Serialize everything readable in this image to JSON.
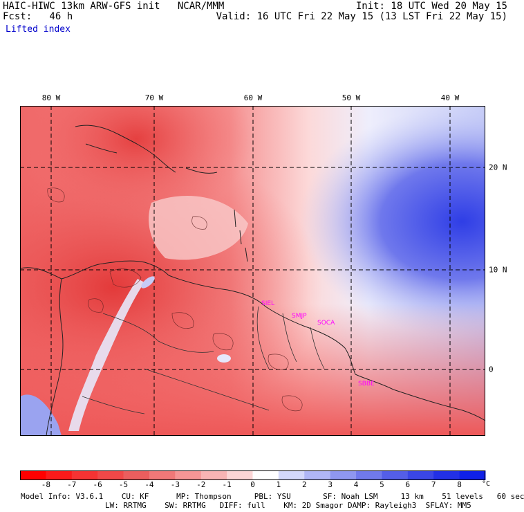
{
  "header": {
    "line1_left": "HAIC-HIWC 13km ARW-GFS init   NCAR/MMM",
    "line1_right": "Init: 18 UTC Wed 20 May 15",
    "line2_left": "Fcst:   46 h",
    "line2_right": "Valid: 16 UTC Fri 22 May 15 (13 LST Fri 22 May 15)",
    "field_name": "Lifted index"
  },
  "map": {
    "longitude_labels": [
      "80 W",
      "70 W",
      "60 W",
      "50 W",
      "40 W"
    ],
    "latitude_labels": [
      "20 N",
      "10 N",
      "0"
    ],
    "stations": [
      "SIEL",
      "SMJP",
      "SOCA",
      "SBBE"
    ],
    "colors": {
      "strong_negative": "#e8333a",
      "negative": "#f48585",
      "neutral": "#fde6e6",
      "positive": "#8d97ee",
      "strong_positive": "#3a48e8"
    }
  },
  "colorbar": {
    "ticks": [
      "-8",
      "-7",
      "-6",
      "-5",
      "-4",
      "-3",
      "-2",
      "-1",
      "0",
      "1",
      "2",
      "3",
      "4",
      "5",
      "6",
      "7",
      "8"
    ],
    "unit": "°C",
    "colors": [
      "#ff0000",
      "#fa1a1a",
      "#f53333",
      "#f04848",
      "#eb5e5e",
      "#f07878",
      "#f59595",
      "#f8b4b4",
      "#fcd6d6",
      "#ffffff",
      "#d4d8fa",
      "#b0b6f5",
      "#8f97f0",
      "#7079ec",
      "#545ee8",
      "#3a46e6",
      "#2230e6",
      "#1020e8"
    ]
  },
  "model_info": {
    "line1": "Model Info: V3.6.1    CU: KF      MP: Thompson     PBL: YSU       SF: Noah LSM     13 km    51 levels   60 sec",
    "line2": "LW: RRTMG    SW: RRTMG   DIFF: full    KM: 2D Smagor DAMP: Rayleigh3  SFLAY: MM5"
  }
}
